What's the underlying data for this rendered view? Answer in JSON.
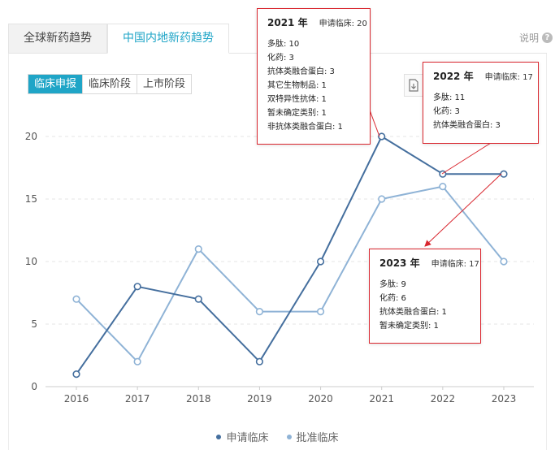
{
  "tabs": [
    {
      "label": "全球新药趋势",
      "active": false
    },
    {
      "label": "中国内地新药趋势",
      "active": true
    }
  ],
  "help_label": "说明",
  "stages": [
    {
      "label": "临床申报",
      "active": true
    },
    {
      "label": "临床阶段",
      "active": false
    },
    {
      "label": "上市阶段",
      "active": false
    }
  ],
  "colors": {
    "accent": "#1fa5c7",
    "series1": "#456f9e",
    "series2": "#8fb3d6",
    "annotation": "#d9262e"
  },
  "chart_data": {
    "type": "line",
    "x": [
      "2016",
      "2017",
      "2018",
      "2019",
      "2020",
      "2021",
      "2022",
      "2023"
    ],
    "ylim": [
      0,
      20
    ],
    "yticks": [
      "0",
      "5",
      "10",
      "15",
      "20"
    ],
    "grid": true,
    "legend_position": "bottom",
    "series": [
      {
        "name": "申请临床",
        "values": [
          1,
          8,
          7,
          2,
          10,
          20,
          17,
          17
        ]
      },
      {
        "name": "批准临床",
        "values": [
          7,
          2,
          11,
          6,
          6,
          15,
          16,
          10
        ]
      }
    ]
  },
  "annotations": [
    {
      "id": "2021",
      "year": "2021 年",
      "summary": "申请临床: 20",
      "rows": [
        "多肽: 10",
        "化药: 3",
        "抗体类融合蛋白: 3",
        "其它生物制品: 1",
        "双特异性抗体: 1",
        "暂未确定类别: 1",
        "非抗体类融合蛋白: 1"
      ]
    },
    {
      "id": "2022",
      "year": "2022 年",
      "summary": "申请临床: 17",
      "rows": [
        "多肽: 11",
        "化药: 3",
        "抗体类融合蛋白: 3"
      ]
    },
    {
      "id": "2023",
      "year": "2023 年",
      "summary": "申请临床: 17",
      "rows": [
        "多肽: 9",
        "化药: 6",
        "抗体类融合蛋白: 1",
        "暂未确定类别: 1"
      ]
    }
  ]
}
